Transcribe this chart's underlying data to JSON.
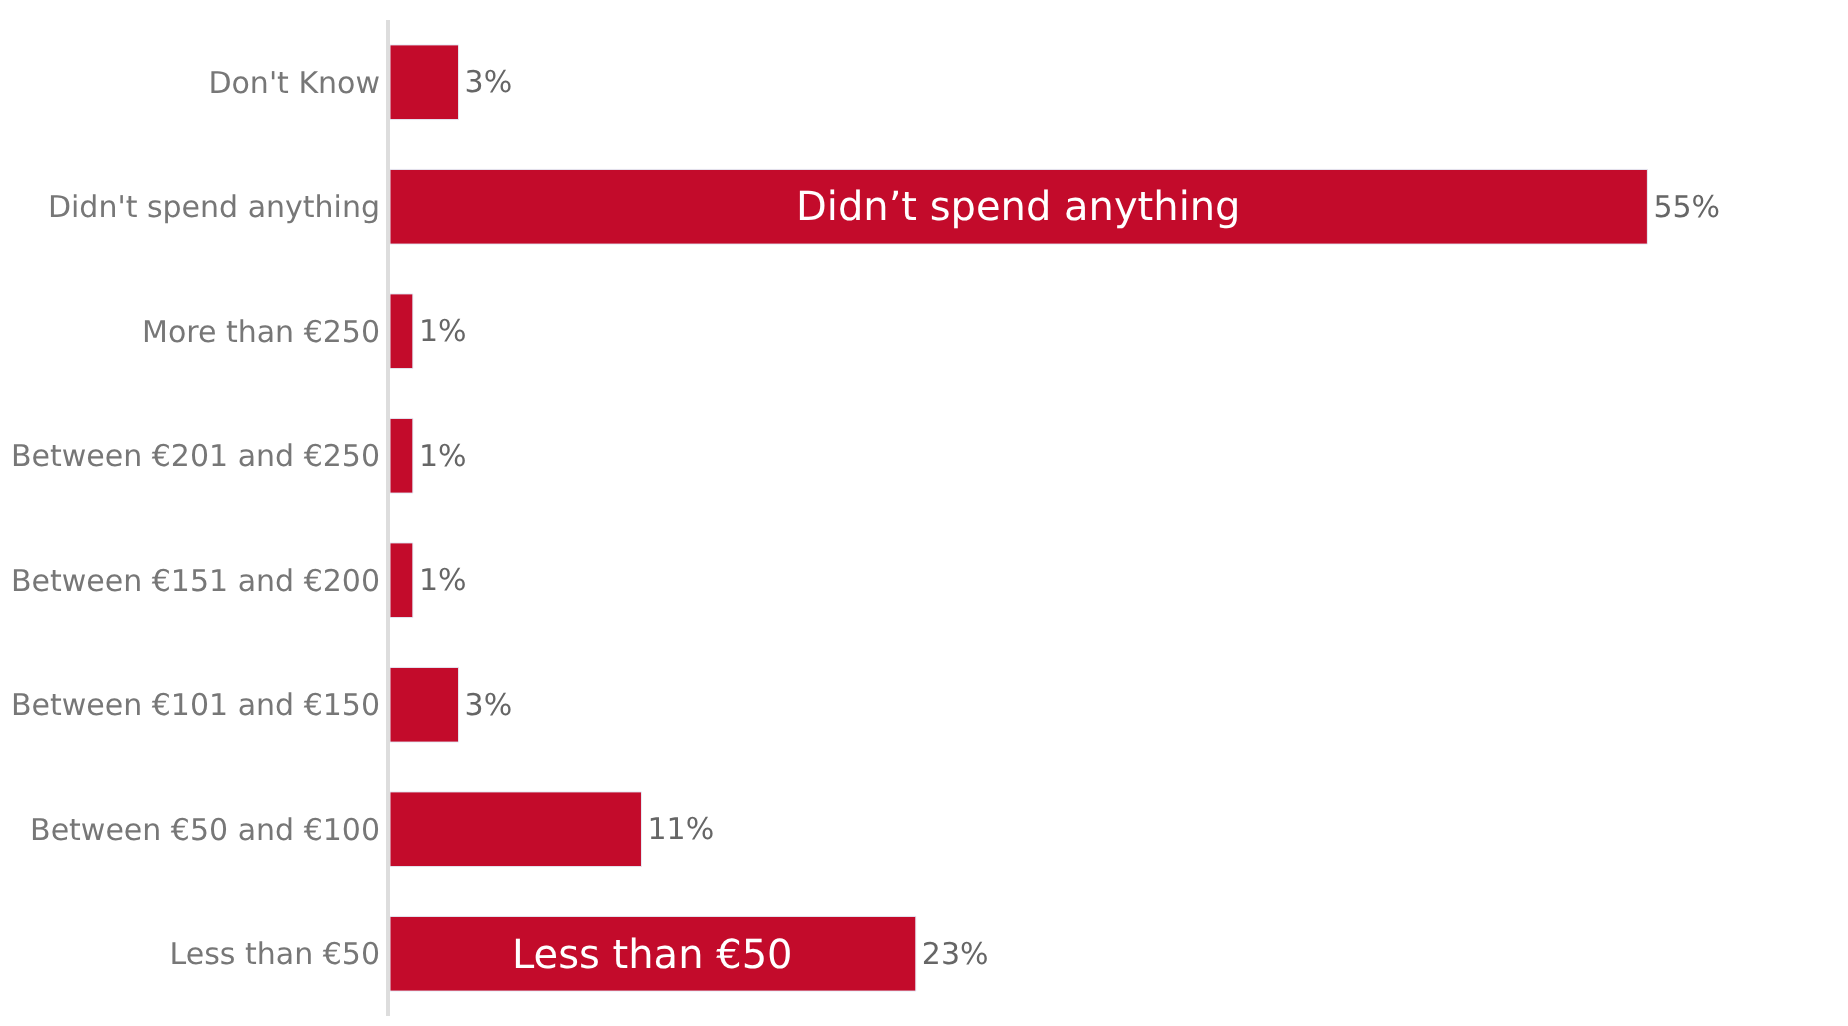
{
  "chart_data": {
    "type": "bar",
    "orientation": "horizontal",
    "categories": [
      "Don't Know",
      "Didn't spend anything",
      "More than €250",
      "Between €201 and €250",
      "Between €151 and €200",
      "Between €101 and €150",
      "Between €50 and €100",
      "Less than €50"
    ],
    "values": [
      3,
      55,
      1,
      1,
      1,
      3,
      11,
      23
    ],
    "value_labels": [
      "3%",
      "55%",
      "1%",
      "1%",
      "1%",
      "3%",
      "11%",
      "23%"
    ],
    "color": "#c30b2b",
    "annotations": [
      "Didn’t spend anything",
      "Less than €50"
    ]
  }
}
